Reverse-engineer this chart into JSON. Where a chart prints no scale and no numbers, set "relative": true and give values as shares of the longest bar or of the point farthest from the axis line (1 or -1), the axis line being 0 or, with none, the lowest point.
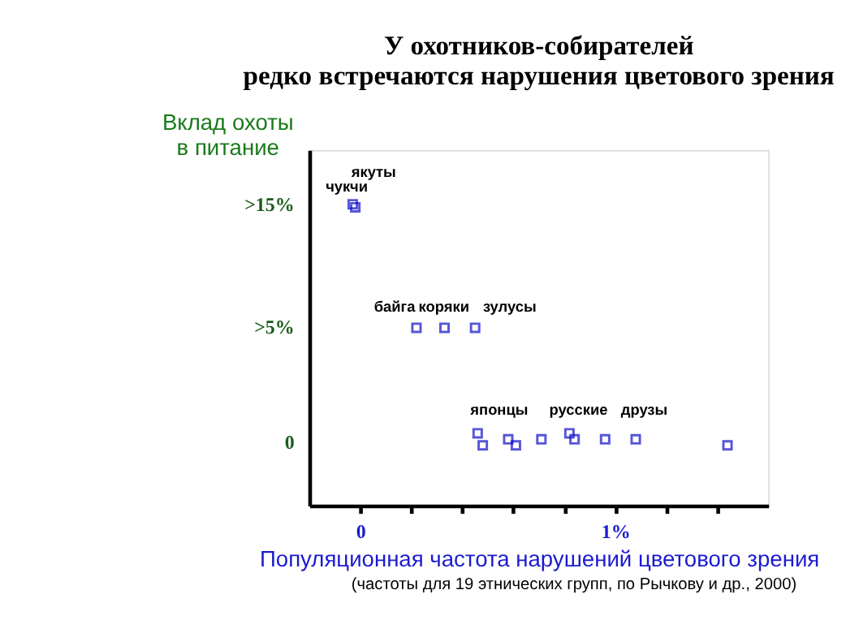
{
  "chart_data": {
    "type": "scatter",
    "title": "У охотников-собирателей\nредко встречаются  нарушения цветового зрения",
    "xlabel": "Популяционная частота нарушений цветового зрения",
    "ylabel": "Вклад охоты\nв питание",
    "relative": true,
    "x": [
      -0.03,
      -0.02,
      0.22,
      0.33,
      0.45,
      0.46,
      0.48,
      0.58,
      0.61,
      0.71,
      0.82,
      0.84,
      0.96,
      1.08,
      1.44
    ],
    "series": [
      {
        "color": "#1010c8",
        "values": [
          1,
          0.99,
          0.59,
          0.59,
          0.59,
          0.24,
          0.2,
          0.22,
          0.2,
          0.22,
          0.24,
          0.22,
          0.22,
          0.22,
          0.2
        ]
      }
    ],
    "marker": "square",
    "xlim": [
      -0.2,
      1.6
    ],
    "xticks": [
      0,
      {
        "value": 0.2,
        "label": null
      },
      {
        "value": 0.4,
        "label": null
      },
      {
        "value": 0.6,
        "label": null
      },
      {
        "value": 0.8,
        "label": null
      },
      {
        "value": 1,
        "label": "1%"
      },
      {
        "value": 1.2,
        "label": null
      },
      {
        "value": 1.4,
        "label": null
      }
    ],
    "grid": false,
    "annotations": [
      "якуты",
      "чукчи",
      "байга",
      "коряки",
      "зулусы",
      "японцы",
      "русские",
      "друзы",
      ">15%",
      ">5%",
      "0",
      "(частоты для 19 этнических групп, по Рычкову и др., 2000)"
    ]
  }
}
